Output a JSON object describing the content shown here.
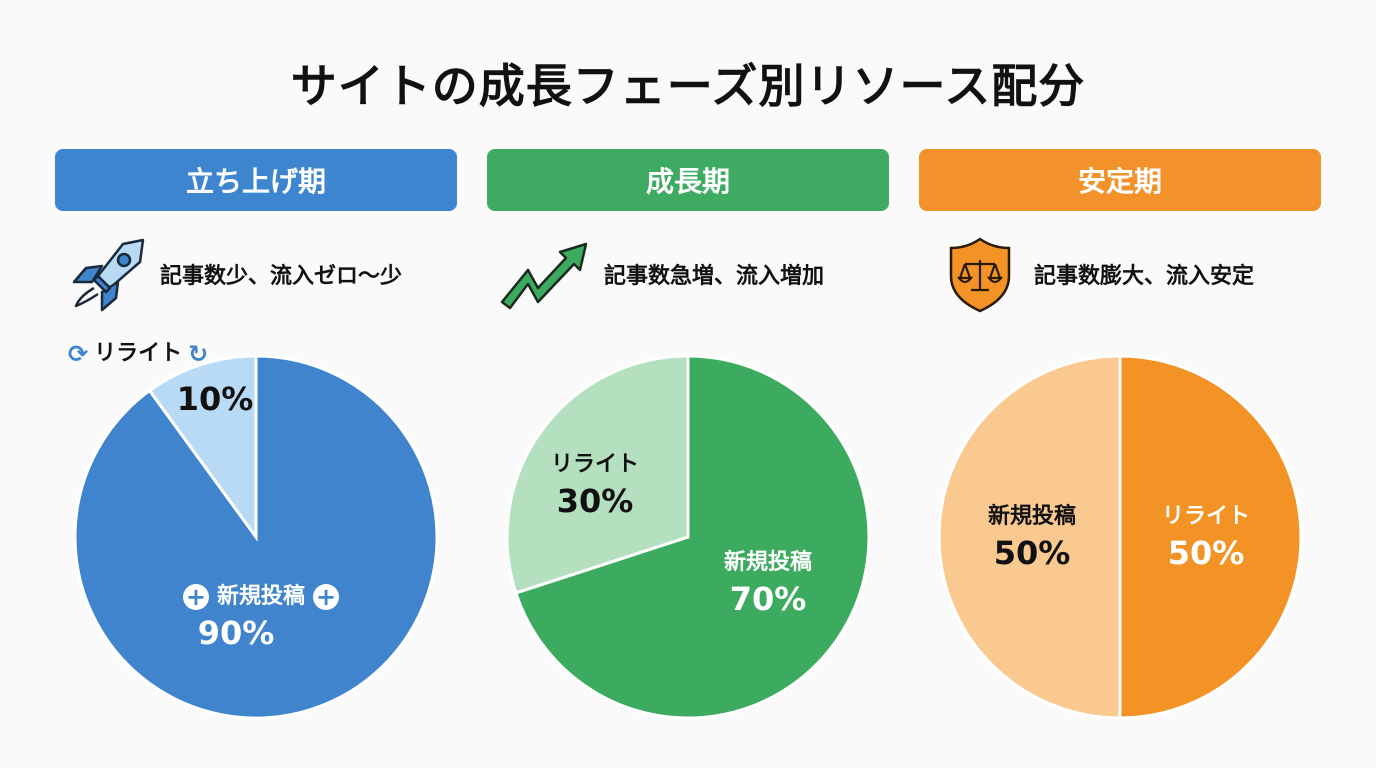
{
  "title": "サイトの成長フェーズ別リソース配分",
  "colors": {
    "blue": "#3f84cc",
    "blue_light": "#b9daf5",
    "green": "#3dab5f",
    "green_light": "#b5e0c0",
    "orange": "#f39325",
    "orange_light": "#fac990"
  },
  "phases": [
    {
      "header": "立ち上げ期",
      "description": "記事数少、流入ゼロ〜少",
      "icon": "rocket-icon"
    },
    {
      "header": "成長期",
      "description": "記事数急増、流入増加",
      "icon": "trend-up-arrow-icon"
    },
    {
      "header": "安定期",
      "description": "記事数膨大、流入安定",
      "icon": "shield-scale-icon"
    }
  ],
  "chart_data": [
    {
      "type": "pie",
      "title": "立ち上げ期",
      "slices": [
        {
          "label": "新規投稿",
          "value": 90,
          "text": "90%"
        },
        {
          "label": "リライト",
          "value": 10,
          "text": "10%"
        }
      ]
    },
    {
      "type": "pie",
      "title": "成長期",
      "slices": [
        {
          "label": "新規投稿",
          "value": 70,
          "text": "70%"
        },
        {
          "label": "リライト",
          "value": 30,
          "text": "30%"
        }
      ]
    },
    {
      "type": "pie",
      "title": "安定期",
      "slices": [
        {
          "label": "リライト",
          "value": 50,
          "text": "50%"
        },
        {
          "label": "新規投稿",
          "value": 50,
          "text": "50%"
        }
      ]
    }
  ]
}
